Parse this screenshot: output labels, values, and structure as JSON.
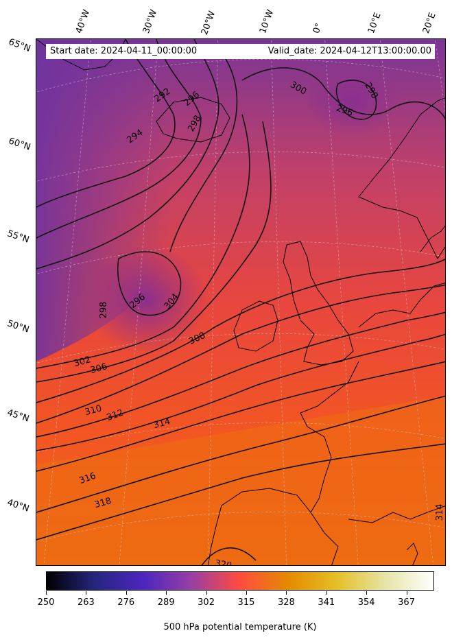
{
  "header": {
    "start_date": "Start date: 2024-04-11_00:00:00",
    "valid_date": "Valid_date: 2024-04-12T13:00:00.00"
  },
  "map": {
    "projection": "conic",
    "longitude_labels": [
      "40°W",
      "30°W",
      "20°W",
      "10°W",
      "0°",
      "10°E",
      "20°E"
    ],
    "latitude_labels": [
      "65°N",
      "60°N",
      "55°N",
      "50°N",
      "45°N",
      "40°N"
    ],
    "field": "500 hPa potential temperature",
    "contour_line_color": "#111111",
    "contour_labels": [
      "292",
      "294",
      "296",
      "298",
      "300",
      "302",
      "304",
      "306",
      "308",
      "310",
      "312",
      "314",
      "316",
      "318",
      "320"
    ]
  },
  "colorbar": {
    "title": "500 hPa potential temperature (K)",
    "colormap": "CMRmap",
    "ticks": [
      "250",
      "263",
      "276",
      "289",
      "302",
      "315",
      "328",
      "341",
      "354",
      "367"
    ],
    "range": [
      250,
      376
    ],
    "colors": [
      "#000000",
      "#26267f",
      "#4c26bf",
      "#993fa5",
      "#ff4c3f",
      "#e58a00",
      "#e5bf26",
      "#e5e5a5",
      "#ffffff"
    ]
  }
}
